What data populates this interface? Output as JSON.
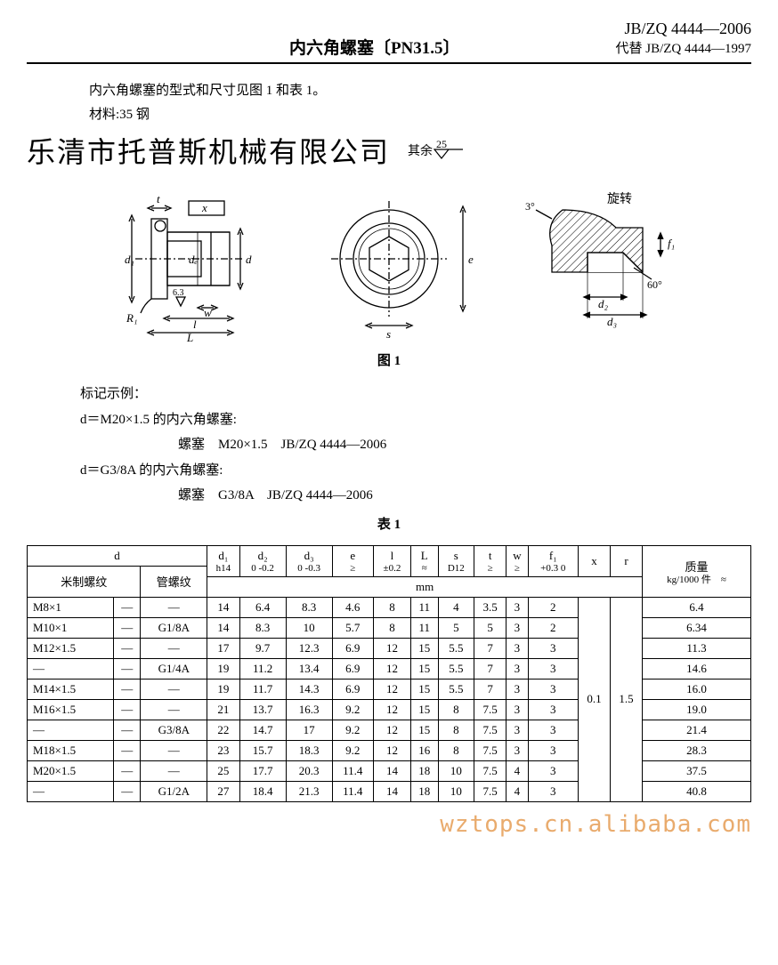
{
  "header": {
    "title": "内六角螺塞〔PN31.5〕",
    "standard_main": "JB/ZQ 4444—2006",
    "supersedes": "代替 JB/ZQ 4444—1997"
  },
  "intro": {
    "line1": "内六角螺塞的型式和尺寸见图 1 和表 1。",
    "line2": "材料:35 钢"
  },
  "company": "乐清市托普斯机械有限公司",
  "rough_label": "其余",
  "rough_value": "25",
  "fig_caption": "图 1",
  "diagram": {
    "side": {
      "R1": "R₁",
      "d1": "d₁",
      "de": "dₑ",
      "d": "d",
      "t": "t",
      "x": "x",
      "w": "w",
      "l": "l",
      "L": "L",
      "ra63": "6.3"
    },
    "front": {
      "e": "e",
      "s": "s"
    },
    "detail": {
      "rotate": "旋转",
      "a3": "3°",
      "a60": "60°",
      "f1": "f₁",
      "d2": "d₂",
      "d3": "d₃"
    }
  },
  "marking": {
    "title": "标记示例：",
    "ex1": "d＝M20×1.5 的内六角螺塞:",
    "spec1": "螺塞　M20×1.5　JB/ZQ 4444—2006",
    "ex2": "d＝G3/8A 的内六角螺塞:",
    "spec2": "螺塞　G3/8A　JB/ZQ 4444—2006"
  },
  "table_caption": "表 1",
  "table": {
    "head": {
      "d": "d",
      "metric": "米制螺纹",
      "pipe": "管螺纹",
      "d1": "d₁",
      "d1_tol": "h14",
      "d2": "d₂",
      "d2_tol": "0\n-0.2",
      "d3": "d₃",
      "d3_tol": "0\n-0.3",
      "e": "e",
      "e_tol": "≥",
      "l": "l",
      "l_tol": "±0.2",
      "L": "L",
      "L_tol": "≈",
      "s": "s",
      "s_tol": "D12",
      "t": "t",
      "t_tol": "≥",
      "w": "w",
      "w_tol": "≥",
      "f1": "f₁",
      "f1_tol": "+0.3\n0",
      "x": "x",
      "r": "r",
      "mass": "质量",
      "mass_sub": "kg/1000\n件　≈",
      "unit": "mm"
    },
    "x_val": "0.1",
    "r_val": "1.5",
    "rows": [
      {
        "m": "M8×1",
        "mm": "—",
        "p": "—",
        "d1": "14",
        "d2": "6.4",
        "d3": "8.3",
        "e": "4.6",
        "l": "8",
        "L": "11",
        "s": "4",
        "t": "3.5",
        "w": "3",
        "f1": "2",
        "mass": "6.4"
      },
      {
        "m": "M10×1",
        "mm": "—",
        "p": "G1/8A",
        "d1": "14",
        "d2": "8.3",
        "d3": "10",
        "e": "5.7",
        "l": "8",
        "L": "11",
        "s": "5",
        "t": "5",
        "w": "3",
        "f1": "2",
        "mass": "6.34"
      },
      {
        "m": "M12×1.5",
        "mm": "—",
        "p": "—",
        "d1": "17",
        "d2": "9.7",
        "d3": "12.3",
        "e": "6.9",
        "l": "12",
        "L": "15",
        "s": "5.5",
        "t": "7",
        "w": "3",
        "f1": "3",
        "mass": "11.3"
      },
      {
        "m": "—",
        "mm": "—",
        "p": "G1/4A",
        "d1": "19",
        "d2": "11.2",
        "d3": "13.4",
        "e": "6.9",
        "l": "12",
        "L": "15",
        "s": "5.5",
        "t": "7",
        "w": "3",
        "f1": "3",
        "mass": "14.6"
      },
      {
        "m": "M14×1.5",
        "mm": "—",
        "p": "—",
        "d1": "19",
        "d2": "11.7",
        "d3": "14.3",
        "e": "6.9",
        "l": "12",
        "L": "15",
        "s": "5.5",
        "t": "7",
        "w": "3",
        "f1": "3",
        "mass": "16.0"
      },
      {
        "m": "M16×1.5",
        "mm": "—",
        "p": "—",
        "d1": "21",
        "d2": "13.7",
        "d3": "16.3",
        "e": "9.2",
        "l": "12",
        "L": "15",
        "s": "8",
        "t": "7.5",
        "w": "3",
        "f1": "3",
        "mass": "19.0"
      },
      {
        "m": "—",
        "mm": "—",
        "p": "G3/8A",
        "d1": "22",
        "d2": "14.7",
        "d3": "17",
        "e": "9.2",
        "l": "12",
        "L": "15",
        "s": "8",
        "t": "7.5",
        "w": "3",
        "f1": "3",
        "mass": "21.4"
      },
      {
        "m": "M18×1.5",
        "mm": "—",
        "p": "—",
        "d1": "23",
        "d2": "15.7",
        "d3": "18.3",
        "e": "9.2",
        "l": "12",
        "L": "16",
        "s": "8",
        "t": "7.5",
        "w": "3",
        "f1": "3",
        "mass": "28.3"
      },
      {
        "m": "M20×1.5",
        "mm": "—",
        "p": "—",
        "d1": "25",
        "d2": "17.7",
        "d3": "20.3",
        "e": "11.4",
        "l": "14",
        "L": "18",
        "s": "10",
        "t": "7.5",
        "w": "4",
        "f1": "3",
        "mass": "37.5"
      },
      {
        "m": "—",
        "mm": "—",
        "p": "G1/2A",
        "d1": "27",
        "d2": "18.4",
        "d3": "21.3",
        "e": "11.4",
        "l": "14",
        "L": "18",
        "s": "10",
        "t": "7.5",
        "w": "4",
        "f1": "3",
        "mass": "40.8"
      }
    ]
  },
  "watermark": "wztops.cn.alibaba.com"
}
